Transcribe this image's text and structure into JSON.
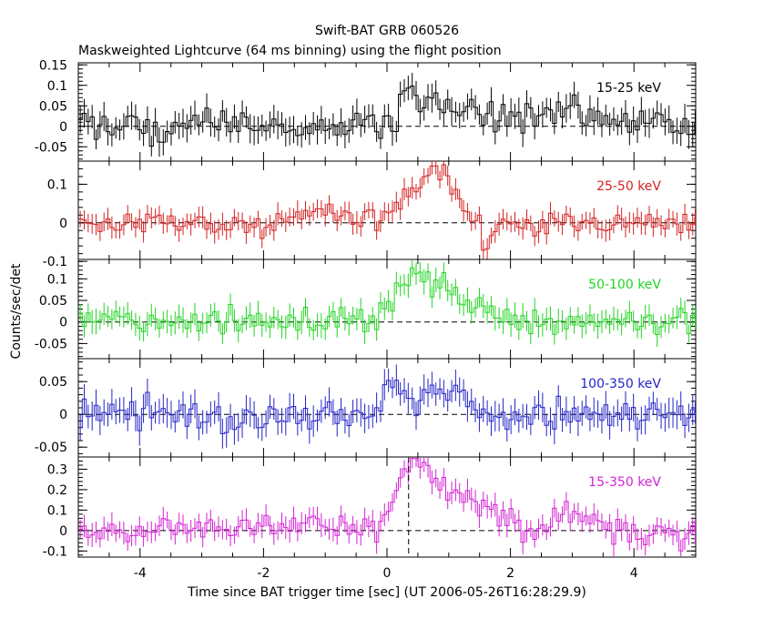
{
  "chart_data": {
    "type": "line",
    "title": "Swift-BAT GRB 060526",
    "subtitle": "Maskweighted Lightcurve (64 ms binning) using the flight position",
    "xlabel": "Time since BAT trigger time [sec] (UT 2006-05-26T16:28:29.9)",
    "ylabel": "Counts/sec/det",
    "xlim": [
      -5,
      5
    ],
    "x_ticks": [
      -4,
      -2,
      0,
      2,
      4
    ],
    "bin_width": 0.064,
    "grid": false,
    "step_style": "histogram with 1-sigma error bars",
    "zero_line": "dashed",
    "marker_line_x": 0.35,
    "panels": [
      {
        "band": "15-25 keV",
        "color": "#000000",
        "ylim": [
          -0.085,
          0.155
        ],
        "yticks": [
          -0.05,
          0,
          0.05,
          0.1,
          0.15
        ],
        "yticklabels": [
          "-0.05",
          "0",
          "0.05",
          "0.1",
          "0.15"
        ],
        "error": 0.03,
        "features": [
          {
            "t": 0.35,
            "amp": 0.09,
            "w": 0.12
          },
          {
            "t": 0.65,
            "amp": 0.05,
            "w": 0.12
          },
          {
            "t": 1.0,
            "amp": 0.06,
            "w": 0.15
          },
          {
            "t": 1.4,
            "amp": 0.04,
            "w": 0.15
          },
          {
            "t": 2.0,
            "amp": 0.03,
            "w": 0.3
          },
          {
            "t": 3.0,
            "amp": 0.04,
            "w": 0.3
          },
          {
            "t": 4.4,
            "amp": 0.03,
            "w": 0.2
          }
        ]
      },
      {
        "band": "25-50 keV",
        "color": "#d42020",
        "ylim": [
          -0.095,
          0.16
        ],
        "yticks": [
          -0.1,
          0,
          0.1
        ],
        "yticklabels": [
          "-0.1",
          "0",
          "0.1"
        ],
        "error": 0.025,
        "features": [
          {
            "t": 0.55,
            "amp": 0.09,
            "w": 0.35
          },
          {
            "t": 0.95,
            "amp": 0.08,
            "w": 0.2
          },
          {
            "t": 1.6,
            "amp": -0.08,
            "w": 0.06
          },
          {
            "t": -1.2,
            "amp": 0.03,
            "w": 0.3
          }
        ]
      },
      {
        "band": "50-100 keV",
        "color": "#22d422",
        "ylim": [
          -0.085,
          0.145
        ],
        "yticks": [
          -0.05,
          0,
          0.05,
          0.1
        ],
        "yticklabels": [
          "-0.05",
          "0",
          "0.05",
          "0.1"
        ],
        "error": 0.025,
        "features": [
          {
            "t": 0.4,
            "amp": 0.1,
            "w": 0.25
          },
          {
            "t": 0.95,
            "amp": 0.07,
            "w": 0.25
          },
          {
            "t": 1.6,
            "amp": 0.03,
            "w": 0.3
          }
        ]
      },
      {
        "band": "100-350 keV",
        "color": "#2424c8",
        "ylim": [
          -0.065,
          0.085
        ],
        "yticks": [
          -0.05,
          0,
          0.05
        ],
        "yticklabels": [
          "-0.05",
          "0",
          "0.05"
        ],
        "error": 0.02,
        "features": [
          {
            "t": 0.1,
            "amp": 0.05,
            "w": 0.15
          },
          {
            "t": 0.9,
            "amp": 0.04,
            "w": 0.25
          }
        ]
      },
      {
        "band": "15-350 keV",
        "color": "#d422d4",
        "ylim": [
          -0.13,
          0.36
        ],
        "yticks": [
          -0.1,
          0,
          0.1,
          0.2,
          0.3
        ],
        "yticklabels": [
          "-0.1",
          "0",
          "0.1",
          "0.2",
          "0.3"
        ],
        "error": 0.05,
        "features": [
          {
            "t": 0.35,
            "amp": 0.27,
            "w": 0.25
          },
          {
            "t": 0.95,
            "amp": 0.2,
            "w": 0.3
          },
          {
            "t": 1.7,
            "amp": 0.1,
            "w": 0.3
          },
          {
            "t": 3.0,
            "amp": 0.08,
            "w": 0.3
          },
          {
            "t": -1.2,
            "amp": 0.06,
            "w": 0.3
          }
        ]
      }
    ]
  }
}
